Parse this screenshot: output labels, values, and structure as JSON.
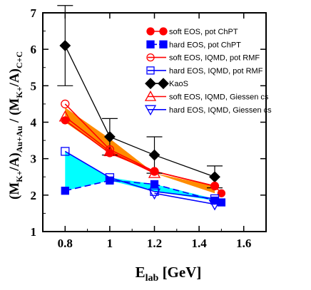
{
  "chart_data": {
    "type": "line",
    "xlabel": {
      "main": "E",
      "sub": "lab",
      "unit": " [GeV]"
    },
    "ylabel": {
      "open": "(M",
      "k1": "K+",
      "mid1": "/A)",
      "s1": "Au+Au",
      "mid2": " / (M",
      "k2": "K+",
      "mid3": "/A)",
      "s2": "C+C"
    },
    "xlim": [
      0.7,
      1.7
    ],
    "ylim": [
      1,
      7
    ],
    "xticks": [
      "0.8",
      "1",
      "1.2",
      "1.4",
      "1.6"
    ],
    "xtick_values": [
      0.8,
      1.0,
      1.2,
      1.4,
      1.6
    ],
    "yticks": [
      "1",
      "2",
      "3",
      "4",
      "5",
      "6",
      "7"
    ],
    "ytick_values": [
      1,
      2,
      3,
      4,
      5,
      6,
      7
    ],
    "bands": [
      {
        "color": "#ff8c00",
        "x": [
          0.8,
          1.0,
          1.2,
          1.47
        ],
        "upper": [
          4.4,
          3.55,
          2.6,
          2.25
        ],
        "lower": [
          4.0,
          3.15,
          2.6,
          2.05
        ]
      },
      {
        "color": "#00ffff",
        "x": [
          0.8,
          1.0,
          1.2,
          1.47
        ],
        "upper": [
          3.2,
          2.48,
          2.3,
          1.9
        ],
        "lower": [
          2.12,
          2.4,
          2.1,
          1.85
        ]
      }
    ],
    "series": [
      {
        "name": "soft EOS, pot ChPT",
        "color": "#ff0000",
        "marker": "circle",
        "filled": true,
        "dash": false,
        "x": [
          0.8,
          1.0,
          1.2,
          1.47,
          1.5
        ],
        "y": [
          4.05,
          3.15,
          2.65,
          2.25,
          2.05
        ]
      },
      {
        "name": "hard EOS, pot ChPT",
        "color": "#0000ff",
        "marker": "square",
        "filled": true,
        "dash": true,
        "x": [
          0.8,
          1.0,
          1.2,
          1.47,
          1.5
        ],
        "y": [
          2.12,
          2.4,
          2.3,
          1.85,
          1.8
        ]
      },
      {
        "name": "soft EOS, IQMD, pot RMF",
        "color": "#ff0000",
        "marker": "circle",
        "filled": false,
        "dash": false,
        "x": [
          0.8,
          1.0,
          1.2,
          1.47
        ],
        "y": [
          4.5,
          3.25,
          2.65,
          2.25
        ]
      },
      {
        "name": "hard EOS, IQMD, pot RMF",
        "color": "#0000ff",
        "marker": "square",
        "filled": false,
        "dash": false,
        "x": [
          0.8,
          1.0,
          1.2,
          1.47
        ],
        "y": [
          3.2,
          2.48,
          2.1,
          1.9
        ]
      },
      {
        "name": "KaoS",
        "color": "#000000",
        "marker": "diamond",
        "filled": true,
        "dash": false,
        "x": [
          0.8,
          1.0,
          1.2,
          1.47
        ],
        "y": [
          6.1,
          3.6,
          3.1,
          2.5
        ],
        "err": [
          1.1,
          0.5,
          0.5,
          0.3
        ]
      },
      {
        "name": "soft EOS, IQMD, Giessen cs",
        "color": "#ff0000",
        "marker": "triangle-up",
        "filled": false,
        "dash": false,
        "x": [
          0.8,
          1.0,
          1.2
        ],
        "y": [
          4.15,
          3.2,
          2.6
        ]
      },
      {
        "name": "hard EOS, IQMD, Giessen cs",
        "color": "#0000ff",
        "marker": "triangle-down",
        "filled": false,
        "dash": false,
        "x": [
          1.2,
          1.47
        ],
        "y": [
          2.05,
          1.75
        ]
      }
    ],
    "legend_position": "top-right"
  }
}
